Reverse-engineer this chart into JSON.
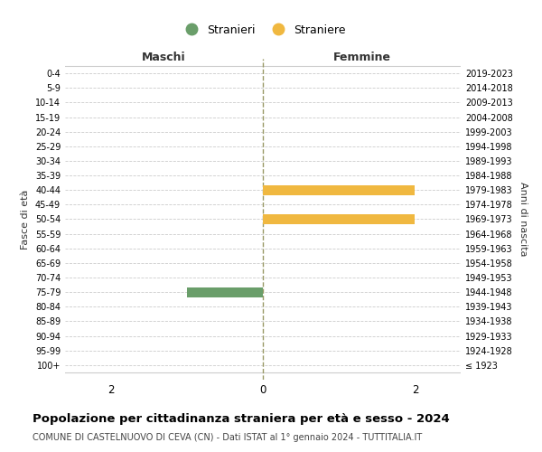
{
  "age_groups": [
    "100+",
    "95-99",
    "90-94",
    "85-89",
    "80-84",
    "75-79",
    "70-74",
    "65-69",
    "60-64",
    "55-59",
    "50-54",
    "45-49",
    "40-44",
    "35-39",
    "30-34",
    "25-29",
    "20-24",
    "15-19",
    "10-14",
    "5-9",
    "0-4"
  ],
  "birth_years": [
    "≤ 1923",
    "1924-1928",
    "1929-1933",
    "1934-1938",
    "1939-1943",
    "1944-1948",
    "1949-1953",
    "1954-1958",
    "1959-1963",
    "1964-1968",
    "1969-1973",
    "1974-1978",
    "1979-1983",
    "1984-1988",
    "1989-1993",
    "1994-1998",
    "1999-2003",
    "2004-2008",
    "2009-2013",
    "2014-2018",
    "2019-2023"
  ],
  "males": [
    0,
    0,
    0,
    0,
    0,
    1,
    0,
    0,
    0,
    0,
    0,
    0,
    0,
    0,
    0,
    0,
    0,
    0,
    0,
    0,
    0
  ],
  "females": [
    0,
    0,
    0,
    0,
    0,
    0,
    0,
    0,
    0,
    0,
    2,
    0,
    2,
    0,
    0,
    0,
    0,
    0,
    0,
    0,
    0
  ],
  "male_color": "#6a9e6a",
  "female_color": "#f0b840",
  "male_label": "Stranieri",
  "female_label": "Straniere",
  "xlim": 2.6,
  "xticks": [
    -2,
    0,
    2
  ],
  "xticklabels": [
    "2",
    "0",
    "2"
  ],
  "ylabel_left": "Fasce di età",
  "ylabel_right": "Anni di nascita",
  "header_left": "Maschi",
  "header_right": "Femmine",
  "title": "Popolazione per cittadinanza straniera per età e sesso - 2024",
  "subtitle": "COMUNE DI CASTELNUOVO DI CEVA (CN) - Dati ISTAT al 1° gennaio 2024 - TUTTITALIA.IT",
  "grid_color": "#cccccc",
  "center_line_color": "#999966",
  "background_color": "#ffffff",
  "bar_height": 0.7
}
